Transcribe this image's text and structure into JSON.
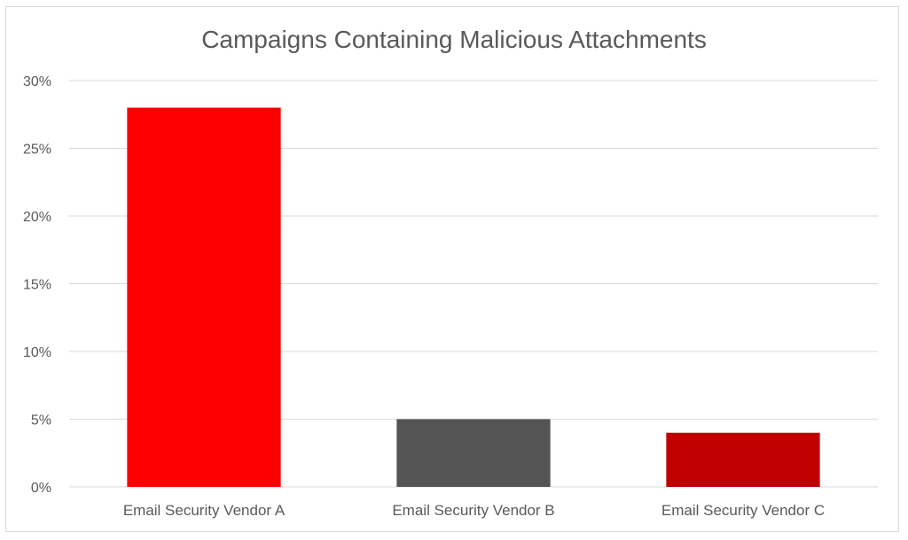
{
  "chart_data": {
    "type": "bar",
    "title": "Campaigns Containing Malicious Attachments",
    "xlabel": "",
    "ylabel": "",
    "categories": [
      "Email Security Vendor A",
      "Email Security Vendor B",
      "Email Security Vendor C"
    ],
    "values": [
      28,
      5,
      4
    ],
    "bar_colors": [
      "#ff0000",
      "#545454",
      "#c00000"
    ],
    "ylim": [
      0,
      30
    ],
    "yticks": [
      0,
      5,
      10,
      15,
      20,
      25,
      30
    ],
    "ytick_labels": [
      "0%",
      "5%",
      "10%",
      "15%",
      "20%",
      "25%",
      "30%"
    ],
    "grid": true,
    "legend": "none"
  }
}
